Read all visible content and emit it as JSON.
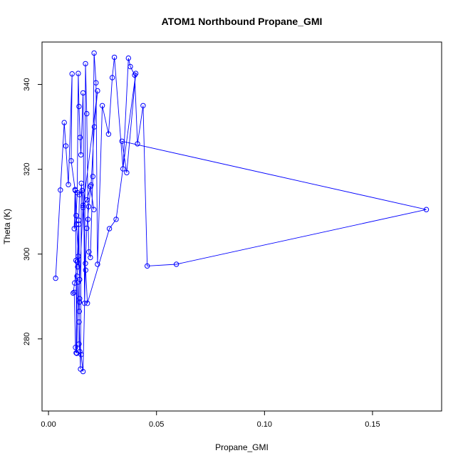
{
  "chart_data": {
    "type": "scatter",
    "title": "ATOM1 Northbound Propane_GMI",
    "xlabel": "Propane_GMI",
    "ylabel": "Theta (K)",
    "xlim": [
      -0.003,
      0.182
    ],
    "ylim": [
      263,
      350
    ],
    "xticks": [
      0.0,
      0.05,
      0.1,
      0.15
    ],
    "xtick_labels": [
      "0.00",
      "0.05",
      "0.10",
      "0.15"
    ],
    "yticks": [
      280,
      300,
      320,
      340
    ],
    "ytick_labels": [
      "280",
      "300",
      "320",
      "340"
    ],
    "grid": false,
    "legend": "none",
    "style": {
      "color": "#0000ff",
      "marker": "open-circle",
      "connected": true
    },
    "series": [
      {
        "x": [
          0.0033,
          0.0055,
          0.0073,
          0.008,
          0.0092,
          0.0109,
          0.0105,
          0.0123,
          0.0119,
          0.0128,
          0.0133,
          0.0138,
          0.0141,
          0.0146,
          0.015,
          0.016,
          0.0167,
          0.0171,
          0.0177,
          0.0183,
          0.0187,
          0.0194,
          0.0205,
          0.0211,
          0.022,
          0.0227,
          0.0249,
          0.0278,
          0.0295,
          0.0305,
          0.0345,
          0.037,
          0.0379,
          0.0399,
          0.0412,
          0.0438,
          0.0457,
          0.0592,
          0.1749,
          0.034,
          0.0362,
          0.0404,
          0.0313,
          0.0282,
          0.018,
          0.0172,
          0.0156,
          0.0143,
          0.014,
          0.0138,
          0.0135,
          0.0132,
          0.0128,
          0.0125,
          0.0119,
          0.0114,
          0.0121,
          0.0133,
          0.014,
          0.0144,
          0.0143,
          0.0142,
          0.0141,
          0.0141,
          0.0145,
          0.0151,
          0.016,
          0.0171,
          0.0177,
          0.0186,
          0.0197,
          0.0212,
          0.0227,
          0.016,
          0.0152,
          0.0148,
          0.0137,
          0.0131,
          0.0127,
          0.0124,
          0.013,
          0.0144,
          0.016,
          0.0178,
          0.0194,
          0.021
        ],
        "y": [
          294.3,
          315.1,
          331.0,
          325.5,
          316.4,
          342.5,
          322.0,
          315.2,
          306.0,
          309.1,
          314.5,
          342.6,
          334.8,
          327.5,
          323.4,
          338.0,
          288.4,
          344.9,
          333.1,
          308.2,
          300.5,
          299.2,
          318.3,
          347.4,
          340.4,
          297.6,
          335.0,
          328.3,
          341.6,
          346.4,
          320.1,
          346.2,
          344.2,
          342.2,
          326.0,
          335.0,
          297.2,
          297.6,
          310.5,
          326.6,
          319.2,
          342.6,
          308.2,
          306.0,
          288.4,
          296.2,
          315.0,
          314.0,
          307.0,
          299.5,
          297.0,
          294.8,
          276.7,
          278.0,
          291.0,
          290.8,
          293.2,
          298.2,
          308.0,
          289.5,
          288.7,
          286.5,
          284.0,
          278.8,
          277.0,
          276.3,
          272.3,
          297.8,
          306.1,
          311.2,
          316.3,
          330.0,
          338.5,
          311.0,
          316.7,
          272.9,
          293.4,
          276.6,
          298.5,
          315.0,
          307.0,
          294.0,
          311.5,
          312.8,
          315.9,
          310.5
        ]
      }
    ]
  }
}
